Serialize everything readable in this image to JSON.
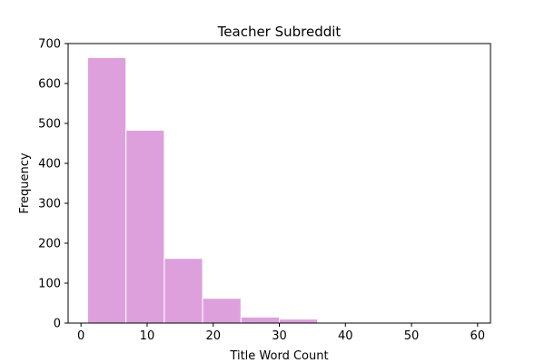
{
  "chart_data": {
    "type": "bar",
    "title": "Teacher Subreddit",
    "xlabel": "Title Word Count",
    "ylabel": "Frequency",
    "xlim": [
      -1.95,
      61.95
    ],
    "ylim": [
      0,
      700
    ],
    "x_ticks": [
      0,
      10,
      20,
      30,
      40,
      50,
      60
    ],
    "y_ticks": [
      0,
      100,
      200,
      300,
      400,
      500,
      600,
      700
    ],
    "bins": [
      {
        "x0": 1.0,
        "x1": 6.8,
        "count": 665
      },
      {
        "x0": 6.8,
        "x1": 12.6,
        "count": 483
      },
      {
        "x0": 12.6,
        "x1": 18.4,
        "count": 162
      },
      {
        "x0": 18.4,
        "x1": 24.2,
        "count": 62
      },
      {
        "x0": 24.2,
        "x1": 30.0,
        "count": 15
      },
      {
        "x0": 30.0,
        "x1": 35.8,
        "count": 10
      },
      {
        "x0": 35.8,
        "x1": 41.6,
        "count": 1
      },
      {
        "x0": 41.6,
        "x1": 47.4,
        "count": 0
      },
      {
        "x0": 47.4,
        "x1": 53.2,
        "count": 1
      },
      {
        "x0": 53.2,
        "x1": 59.0,
        "count": 1
      }
    ],
    "bar_color": "#dda0dd",
    "edge_color": "#ffffff",
    "grid": false,
    "legend": "none"
  }
}
